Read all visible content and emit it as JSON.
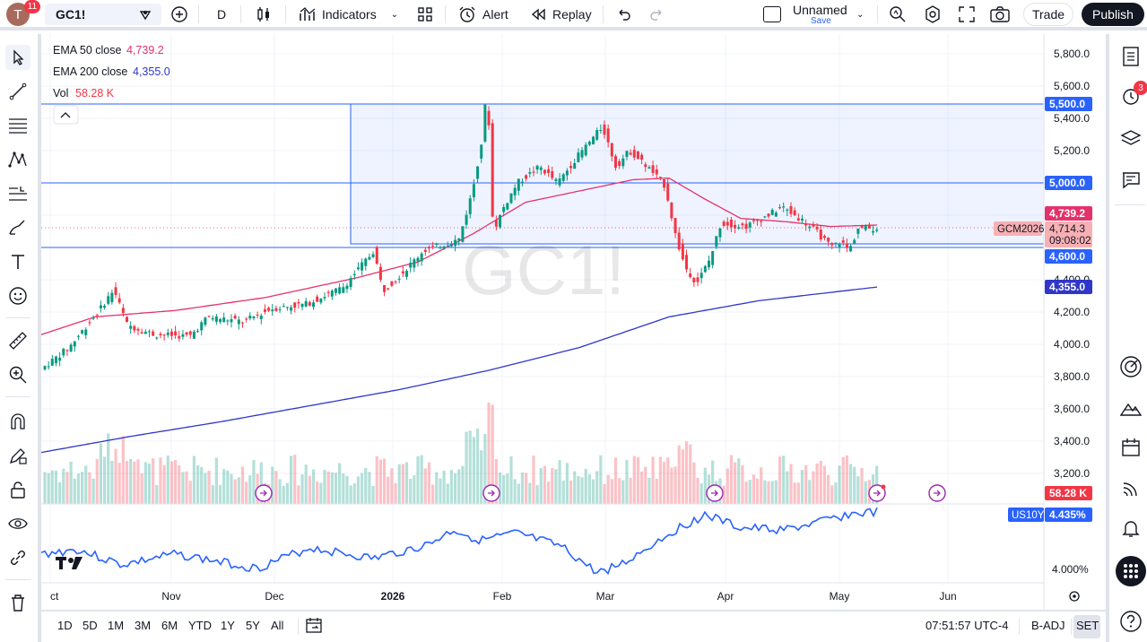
{
  "header": {
    "avatar_letter": "T",
    "avatar_badge": "11",
    "symbol": "GC1!",
    "interval": "D",
    "indicators_label": "Indicators",
    "alert_label": "Alert",
    "replay_label": "Replay",
    "layout_name": "Unnamed",
    "layout_save": "Save",
    "trade_label": "Trade",
    "publish_label": "Publish"
  },
  "legend": {
    "ema50_label": "EMA 50 close",
    "ema50_value": "4,739.2",
    "ema200_label": "EMA 200 close",
    "ema200_value": "4,355.0",
    "vol_label": "Vol",
    "vol_value": "58.28 K"
  },
  "watermark": "GC1!",
  "price_scale": {
    "ticks": [
      "5,800.0",
      "5,600.0",
      "5,400.0",
      "5,200.0",
      "4,800.0",
      "4,400.0",
      "4,200.0",
      "4,000.0",
      "3,800.0",
      "3,600.0",
      "3,400.0",
      "3,200.0"
    ],
    "tick_values": [
      5800,
      5600,
      5400,
      5200,
      4800,
      4400,
      4200,
      4000,
      3800,
      3600,
      3400,
      3200
    ],
    "tag_5500": "5,500.0",
    "tag_5000": "5,000.0",
    "tag_4600": "4,600.0",
    "tag_ema50": "4,739.2",
    "tag_price": "4,714.3",
    "tag_countdown": "09:08:02",
    "tag_contract": "GCM2026",
    "tag_ema200": "4,355.0",
    "tag_vol": "58.28 K"
  },
  "lower_pane": {
    "symbol_tag": "US10Y",
    "value_tag": "4.435%",
    "tick": "4.000%"
  },
  "time_axis": [
    "ct",
    "Nov",
    "Dec",
    "2026",
    "Feb",
    "Mar",
    "Apr",
    "May",
    "Jun"
  ],
  "bottom": {
    "ranges": [
      "1D",
      "5D",
      "1M",
      "3M",
      "6M",
      "YTD",
      "1Y",
      "5Y",
      "All"
    ],
    "clock": "07:51:57 UTC-4",
    "badj": "B-ADJ",
    "set": "SET"
  },
  "right_badge": "3",
  "colors": {
    "up": "#089981",
    "down": "#f23645",
    "ema50": "#e5316b",
    "ema200": "#2f36c8",
    "line": "#2962ff",
    "accent": "#2962ff"
  }
}
